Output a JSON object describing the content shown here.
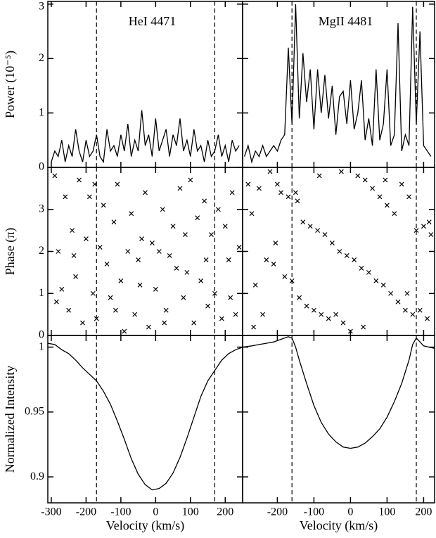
{
  "chart_data": [
    {
      "type": "line",
      "annotation": "HeI 4471",
      "ylabel": "Power (10⁻⁵)",
      "xlim": [
        -310,
        250
      ],
      "ylim": [
        0,
        3.05
      ],
      "xticks": [
        -300,
        -200,
        -100,
        0,
        100,
        200
      ],
      "yticks": [
        0,
        1,
        2,
        3
      ],
      "xtick_labels": false,
      "ytick_labels": true,
      "vlines": [
        -170,
        170
      ],
      "color": "#000000",
      "x": [
        -300,
        -290,
        -280,
        -270,
        -260,
        -250,
        -240,
        -230,
        -220,
        -210,
        -200,
        -190,
        -180,
        -170,
        -160,
        -150,
        -140,
        -130,
        -120,
        -110,
        -100,
        -90,
        -80,
        -70,
        -60,
        -50,
        -40,
        -30,
        -20,
        -10,
        0,
        10,
        20,
        30,
        40,
        50,
        60,
        70,
        80,
        90,
        100,
        110,
        120,
        130,
        140,
        150,
        160,
        170,
        180,
        190,
        200,
        210,
        220,
        230,
        240
      ],
      "values": [
        0.1,
        0.3,
        0.2,
        0.5,
        0.1,
        0.4,
        0.2,
        0.7,
        0.3,
        0.1,
        0.5,
        0.2,
        0.3,
        0.6,
        0.2,
        0.1,
        0.7,
        0.3,
        0.4,
        0.2,
        0.6,
        0.3,
        0.8,
        0.2,
        0.5,
        0.3,
        1.05,
        0.4,
        0.6,
        0.2,
        0.9,
        0.3,
        0.5,
        0.7,
        0.2,
        0.6,
        0.4,
        0.9,
        0.3,
        0.5,
        0.2,
        0.7,
        0.3,
        0.4,
        0.1,
        0.5,
        0.2,
        0.3,
        0.6,
        0.2,
        0.4,
        0.1,
        0.5,
        0.3,
        0.4
      ]
    },
    {
      "type": "line",
      "annotation": "MgII 4481",
      "xlim": [
        -295,
        230
      ],
      "ylim": [
        0,
        3.05
      ],
      "xticks": [
        -200,
        -100,
        0,
        100,
        200
      ],
      "yticks": [
        0,
        1,
        2,
        3
      ],
      "xtick_labels": false,
      "ytick_labels": false,
      "vlines": [
        -160,
        180
      ],
      "color": "#000000",
      "x": [
        -290,
        -280,
        -270,
        -260,
        -250,
        -240,
        -230,
        -220,
        -210,
        -200,
        -190,
        -180,
        -170,
        -160,
        -150,
        -140,
        -130,
        -120,
        -110,
        -100,
        -90,
        -80,
        -70,
        -60,
        -50,
        -40,
        -30,
        -20,
        -10,
        0,
        10,
        20,
        30,
        40,
        50,
        60,
        70,
        80,
        90,
        100,
        110,
        120,
        130,
        140,
        150,
        160,
        170,
        180,
        190,
        200,
        210,
        220
      ],
      "values": [
        0.2,
        0.4,
        0.1,
        0.3,
        0.2,
        0.4,
        0.2,
        0.3,
        0.4,
        0.3,
        0.5,
        0.6,
        2.2,
        0.8,
        3.0,
        0.9,
        2.1,
        1.2,
        1.8,
        0.7,
        1.8,
        1.0,
        1.7,
        0.9,
        1.5,
        0.6,
        1.3,
        1.4,
        0.8,
        1.6,
        0.7,
        1.0,
        1.6,
        0.5,
        0.9,
        0.4,
        1.8,
        0.5,
        0.8,
        1.8,
        0.4,
        0.6,
        2.65,
        0.3,
        0.6,
        0.4,
        2.95,
        0.8,
        2.5,
        0.4,
        0.3,
        0.2
      ]
    },
    {
      "type": "scatter",
      "ylabel": "Phase (π)",
      "xlim": [
        -310,
        250
      ],
      "ylim": [
        0,
        4
      ],
      "xticks": [
        -300,
        -200,
        -100,
        0,
        100,
        200
      ],
      "yticks": [
        0,
        1,
        2,
        3
      ],
      "xtick_labels": false,
      "ytick_labels": true,
      "vlines": [
        -170,
        170
      ],
      "color": "#000000",
      "x": [
        -290,
        -280,
        -270,
        -260,
        -250,
        -240,
        -230,
        -220,
        -210,
        -200,
        -190,
        -180,
        -170,
        -160,
        -150,
        -140,
        -130,
        -120,
        -110,
        -100,
        -90,
        -80,
        -70,
        -60,
        -50,
        -40,
        -30,
        -20,
        -10,
        0,
        10,
        20,
        30,
        40,
        50,
        60,
        70,
        80,
        90,
        100,
        110,
        120,
        130,
        140,
        150,
        160,
        170,
        180,
        190,
        200,
        210,
        220,
        230,
        240,
        -285,
        -235,
        -175,
        -115,
        -45,
        25,
        85,
        145,
        215
      ],
      "values": [
        3.8,
        2.0,
        1.1,
        3.3,
        0.6,
        2.5,
        1.4,
        3.7,
        0.3,
        2.3,
        3.3,
        1.0,
        0.4,
        2.1,
        3.1,
        1.7,
        0.9,
        2.7,
        3.6,
        1.3,
        0.1,
        2.0,
        2.9,
        0.5,
        1.8,
        2.3,
        3.4,
        0.2,
        2.2,
        1.1,
        2.0,
        3.0,
        0.6,
        1.9,
        2.6,
        1.6,
        3.5,
        0.9,
        1.5,
        3.7,
        0.3,
        2.8,
        1.3,
        3.2,
        0.7,
        2.4,
        1.0,
        3.0,
        0.4,
        2.6,
        1.8,
        3.4,
        0.5,
        2.1,
        0.8,
        1.9,
        3.6,
        0.6,
        1.2,
        0.3,
        2.4,
        1.8,
        0.9
      ]
    },
    {
      "type": "scatter",
      "xlim": [
        -295,
        230
      ],
      "ylim": [
        0,
        4
      ],
      "xticks": [
        -200,
        -100,
        0,
        100,
        200
      ],
      "yticks": [
        0,
        1,
        2,
        3
      ],
      "xtick_labels": false,
      "ytick_labels": false,
      "vlines": [
        -160,
        180
      ],
      "color": "#000000",
      "x": [
        -280,
        -270,
        -260,
        -250,
        -240,
        -230,
        -220,
        -210,
        -200,
        -190,
        -180,
        -170,
        -160,
        -150,
        -140,
        -130,
        -120,
        -110,
        -100,
        -90,
        -80,
        -70,
        -60,
        -50,
        -40,
        -30,
        -20,
        -10,
        0,
        10,
        20,
        30,
        40,
        50,
        60,
        70,
        80,
        90,
        100,
        110,
        120,
        130,
        140,
        150,
        160,
        170,
        180,
        190,
        200,
        210,
        220,
        -265,
        -205,
        -145,
        -85,
        -25,
        35,
        95,
        155,
        215
      ],
      "values": [
        3.6,
        2.9,
        1.2,
        3.5,
        0.5,
        1.8,
        3.9,
        1.7,
        3.6,
        3.4,
        1.4,
        3.3,
        1.3,
        3.4,
        0.9,
        2.7,
        0.7,
        2.6,
        0.6,
        2.5,
        0.5,
        2.4,
        0.4,
        2.2,
        0.5,
        2.0,
        0.3,
        1.9,
        0.1,
        1.8,
        3.8,
        1.6,
        3.7,
        1.5,
        3.5,
        1.3,
        3.3,
        1.2,
        3.1,
        1.0,
        2.9,
        0.8,
        3.6,
        0.6,
        3.3,
        0.5,
        2.5,
        0.6,
        2.6,
        0.4,
        2.4,
        0.2,
        2.2,
        3.2,
        3.8,
        3.9,
        0.2,
        3.7,
        1.0,
        2.7
      ]
    },
    {
      "type": "line",
      "ylabel": "Normalized Intensity",
      "xlabel": "Velocity (km/s)",
      "xlim": [
        -310,
        250
      ],
      "ylim": [
        0.88,
        1.009
      ],
      "xticks": [
        -300,
        -200,
        -100,
        0,
        100,
        200
      ],
      "yticks": [
        0.9,
        0.95,
        1
      ],
      "xtick_labels": true,
      "ytick_labels": true,
      "vlines": [
        -170,
        170
      ],
      "color": "#000000",
      "x": [
        -310,
        -290,
        -270,
        -250,
        -230,
        -210,
        -190,
        -170,
        -150,
        -130,
        -110,
        -90,
        -70,
        -50,
        -30,
        -10,
        10,
        30,
        50,
        70,
        90,
        110,
        130,
        150,
        170,
        190,
        210,
        230,
        250
      ],
      "values": [
        1.003,
        1.002,
        0.998,
        0.995,
        0.99,
        0.984,
        0.979,
        0.974,
        0.966,
        0.956,
        0.943,
        0.929,
        0.914,
        0.902,
        0.894,
        0.89,
        0.891,
        0.895,
        0.903,
        0.915,
        0.93,
        0.946,
        0.962,
        0.974,
        0.982,
        0.99,
        0.995,
        0.998,
        1.0
      ]
    },
    {
      "type": "line",
      "xlabel": "Velocity (km/s)",
      "xlim": [
        -295,
        230
      ],
      "ylim": [
        0.88,
        1.009
      ],
      "xticks": [
        -200,
        -100,
        0,
        100,
        200
      ],
      "yticks": [
        0.9,
        0.95,
        1
      ],
      "xtick_labels": true,
      "ytick_labels": false,
      "vlines": [
        -160,
        180
      ],
      "color": "#000000",
      "x": [
        -295,
        -270,
        -250,
        -230,
        -210,
        -190,
        -170,
        -160,
        -150,
        -140,
        -120,
        -100,
        -80,
        -60,
        -40,
        -20,
        0,
        20,
        40,
        60,
        80,
        100,
        120,
        140,
        160,
        170,
        180,
        190,
        200,
        215,
        230
      ],
      "values": [
        1.0,
        1.001,
        1.002,
        1.003,
        1.004,
        1.006,
        1.008,
        1.007,
        1.0,
        0.99,
        0.972,
        0.955,
        0.942,
        0.933,
        0.927,
        0.923,
        0.922,
        0.923,
        0.926,
        0.931,
        0.937,
        0.946,
        0.958,
        0.972,
        0.99,
        1.002,
        1.007,
        1.004,
        1.001,
        1.0,
        0.999
      ]
    }
  ]
}
